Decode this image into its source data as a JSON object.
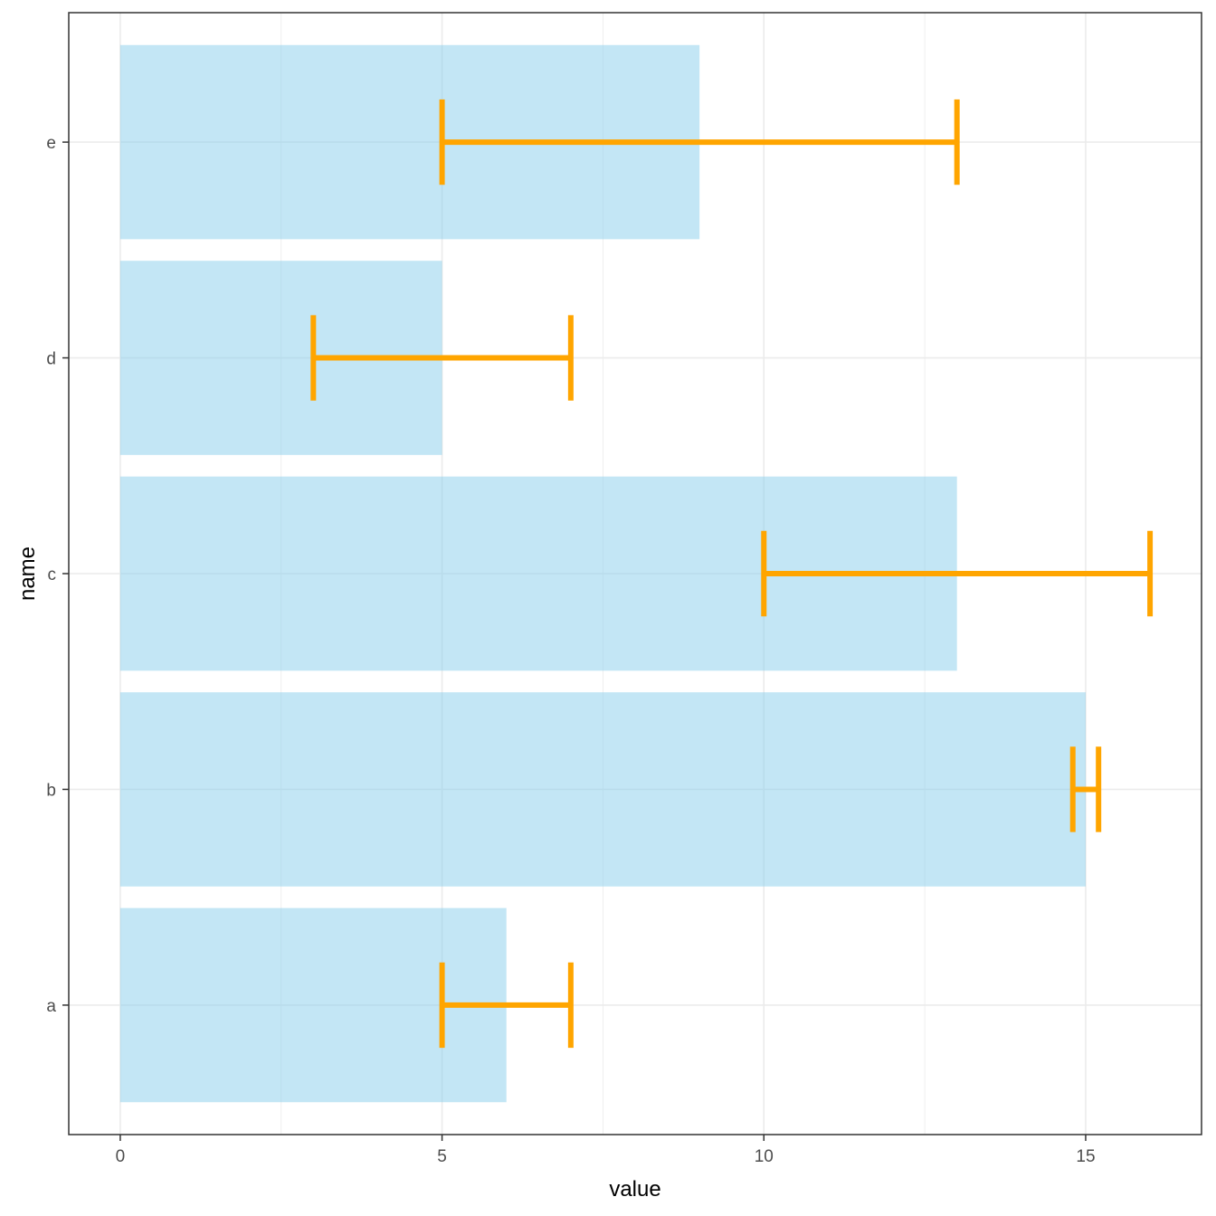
{
  "chart_data": {
    "type": "bar",
    "orientation": "horizontal",
    "categories": [
      "a",
      "b",
      "c",
      "d",
      "e"
    ],
    "values": [
      6,
      15,
      13,
      5,
      9
    ],
    "error_low": [
      5,
      14.8,
      10,
      3,
      5
    ],
    "error_high": [
      7,
      15.2,
      16,
      7,
      13
    ],
    "xlabel": "value",
    "ylabel": "name",
    "xlim": [
      -0.8,
      16.8
    ],
    "x_ticks": [
      "0",
      "5",
      "10",
      "15"
    ],
    "x_tick_values": [
      0,
      5,
      10,
      15
    ],
    "grid": true,
    "bar_color": "#87CEEB",
    "bar_opacity": 0.5,
    "error_bar_color": "#FFA500",
    "panel_border_color": "#333333",
    "grid_color": "#EBEBEB"
  }
}
